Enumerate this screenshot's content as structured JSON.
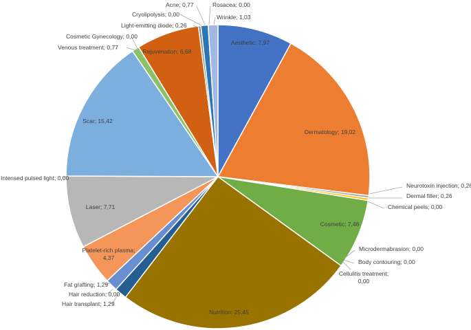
{
  "chart_data": {
    "type": "pie",
    "title": "",
    "start_angle_deg": 0,
    "direction": "clockwise",
    "slices": [
      {
        "label": "Aesthetic",
        "value": "7,97",
        "num": 7.97,
        "color": "#4472c4"
      },
      {
        "label": "Dermatology",
        "value": "19,02",
        "num": 19.02,
        "color": "#ed7d31"
      },
      {
        "label": "Neurotoxin injection",
        "value": "0,26",
        "num": 0.26,
        "color": "#a5a5a5"
      },
      {
        "label": "Dermal filler",
        "value": "0,26",
        "num": 0.26,
        "color": "#ffc000"
      },
      {
        "label": "Chemical peels",
        "value": "0,00",
        "num": 0.0,
        "color": "#5b9bd5"
      },
      {
        "label": "Cosmetic",
        "value": "7,46",
        "num": 7.46,
        "color": "#70ad47"
      },
      {
        "label": "Microdermabrasion",
        "value": "0,00",
        "num": 0.0,
        "color": "#264478"
      },
      {
        "label": "Body contouring",
        "value": "0,00",
        "num": 0.0,
        "color": "#9e480e"
      },
      {
        "label": "Cellulitis treatment",
        "value": "0,00",
        "num": 0.0,
        "color": "#636363"
      },
      {
        "label": "Nutrition",
        "value": "25,45",
        "num": 25.45,
        "color": "#997300"
      },
      {
        "label": "Hair transplant",
        "value": "1,29",
        "num": 1.29,
        "color": "#255e91"
      },
      {
        "label": "Hair reduction",
        "value": "0,00",
        "num": 0.0,
        "color": "#43682b"
      },
      {
        "label": "Fat grafting",
        "value": "1,29",
        "num": 1.29,
        "color": "#698ed0"
      },
      {
        "label": "Platelet-rich plasma",
        "value": "4,37",
        "num": 4.37,
        "color": "#f4965a"
      },
      {
        "label": "Laser",
        "value": "7,71",
        "num": 7.71,
        "color": "#b7b7b7"
      },
      {
        "label": "Intensed pulsed light",
        "value": "0,00",
        "num": 0.0,
        "color": "#ffcd33"
      },
      {
        "label": "Scar",
        "value": "15,42",
        "num": 15.42,
        "color": "#7cafdd"
      },
      {
        "label": "Venous treatment",
        "value": "0,77",
        "num": 0.77,
        "color": "#8cc168"
      },
      {
        "label": "Cosmetic Gynecology",
        "value": "0,00",
        "num": 0.0,
        "color": "#335aa1"
      },
      {
        "label": "Rejuvenation",
        "value": "6,68",
        "num": 6.68,
        "color": "#d26012"
      },
      {
        "label": "Light-emitting diode",
        "value": "0,26",
        "num": 0.26,
        "color": "#848484"
      },
      {
        "label": "Cryolipolysis",
        "value": "0,00",
        "num": 0.0,
        "color": "#cc9a00"
      },
      {
        "label": "Acne",
        "value": "0,77",
        "num": 0.77,
        "color": "#2e75b6"
      },
      {
        "label": "Rosacea",
        "value": "0,00",
        "num": 0.0,
        "color": "#5a8a3a"
      },
      {
        "label": "Wrinkle",
        "value": "1,03",
        "num": 1.03,
        "color": "#a2b8e1"
      }
    ]
  }
}
